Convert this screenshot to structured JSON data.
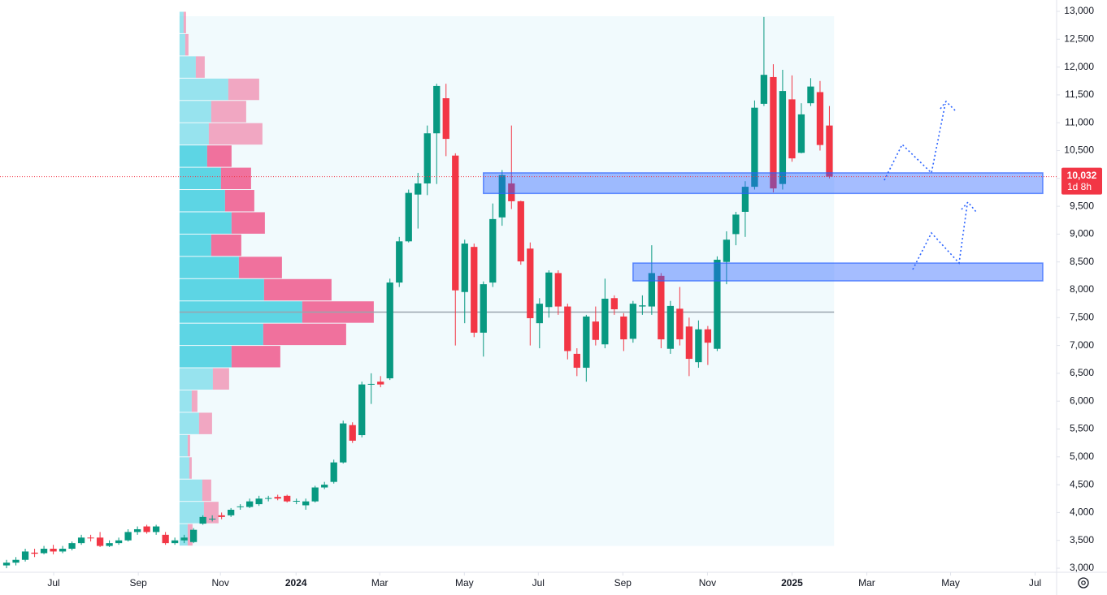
{
  "chart_data": {
    "type": "candlestick",
    "open": [
      3050,
      3100,
      3150,
      3280,
      3270,
      3350,
      3300,
      3350,
      3450,
      3550,
      3550,
      3400,
      3450,
      3500,
      3650,
      3750,
      3650,
      3600,
      3450,
      3500,
      3470,
      3800,
      3880,
      3950,
      3950,
      4100,
      4100,
      4150,
      4250,
      4280,
      4300,
      4200,
      4130,
      4200,
      4450,
      4550,
      4900,
      5570,
      5390,
      6300,
      6350,
      6410,
      8130,
      8870,
      9710,
      9910,
      10810,
      11440,
      10410,
      7960,
      8770,
      7230,
      8130,
      9300,
      9910,
      9590,
      8740,
      7400,
      7690,
      8300,
      7700,
      6850,
      6600,
      7430,
      7020,
      7850,
      7520,
      7120,
      7700,
      7700,
      8250,
      6940,
      7660,
      7340,
      6700,
      7290,
      6940,
      8500,
      9000,
      9400,
      9850,
      11340,
      11820,
      9900,
      11420,
      10460,
      11350,
      11550,
      10950
    ],
    "high": [
      3150,
      3200,
      3350,
      3350,
      3400,
      3420,
      3400,
      3480,
      3600,
      3600,
      3650,
      3500,
      3550,
      3700,
      3750,
      3780,
      3780,
      3650,
      3550,
      3600,
      3720,
      3950,
      3950,
      4000,
      4080,
      4150,
      4250,
      4300,
      4300,
      4320,
      4320,
      4250,
      4250,
      4480,
      4550,
      4950,
      5650,
      5620,
      6350,
      6500,
      6450,
      8200,
      8950,
      9800,
      10100,
      10950,
      11700,
      11700,
      10450,
      8900,
      8830,
      8150,
      9550,
      10150,
      10950,
      9600,
      8850,
      7850,
      8350,
      8350,
      7750,
      6950,
      7550,
      7700,
      8200,
      7900,
      7580,
      7800,
      7900,
      8800,
      8300,
      7800,
      8050,
      7500,
      7450,
      7350,
      8600,
      9050,
      9400,
      9950,
      11400,
      12900,
      12050,
      11950,
      11850,
      11350,
      11800,
      11750,
      11300
    ],
    "low": [
      3000,
      3050,
      3120,
      3200,
      3250,
      3250,
      3270,
      3320,
      3420,
      3480,
      3380,
      3380,
      3420,
      3480,
      3600,
      3620,
      3600,
      3420,
      3420,
      3450,
      3450,
      3780,
      3840,
      3880,
      3920,
      4050,
      4080,
      4120,
      4200,
      4220,
      4180,
      4150,
      4050,
      4180,
      4420,
      4520,
      4880,
      5250,
      5350,
      5950,
      6250,
      6380,
      8050,
      8850,
      9100,
      9700,
      9900,
      10400,
      7000,
      7400,
      7150,
      6800,
      8050,
      9150,
      9450,
      8450,
      7000,
      6950,
      7500,
      7550,
      6750,
      6450,
      6350,
      7000,
      6950,
      7550,
      6900,
      7050,
      7550,
      7550,
      6950,
      6850,
      7000,
      6450,
      6600,
      6650,
      6900,
      8100,
      8800,
      8950,
      9800,
      11300,
      9750,
      9800,
      10300,
      10450,
      11300,
      10500,
      10000
    ],
    "close": [
      3100,
      3150,
      3300,
      3260,
      3350,
      3300,
      3350,
      3450,
      3550,
      3540,
      3400,
      3450,
      3500,
      3650,
      3700,
      3650,
      3750,
      3450,
      3500,
      3550,
      3690,
      3920,
      3890,
      3920,
      4050,
      4110,
      4200,
      4250,
      4260,
      4250,
      4200,
      4210,
      4200,
      4450,
      4500,
      4900,
      5600,
      5290,
      6300,
      6310,
      6300,
      8130,
      8870,
      9740,
      9910,
      10810,
      11660,
      10710,
      7990,
      8830,
      7230,
      8100,
      9270,
      10060,
      9590,
      8510,
      7490,
      7750,
      8310,
      7700,
      6900,
      6600,
      7520,
      7100,
      7840,
      7650,
      7110,
      7750,
      7720,
      8300,
      7110,
      7710,
      7110,
      6760,
      7290,
      7050,
      8540,
      8900,
      9350,
      9850,
      11270,
      11860,
      9820,
      11570,
      10360,
      11150,
      11650,
      10600,
      10032
    ],
    "up_color": "#089981",
    "down_color": "#f23645",
    "ylim": [
      3000,
      13000
    ],
    "yticks": [
      {
        "value": 3000,
        "label": "3,000"
      },
      {
        "value": 3500,
        "label": "3,500"
      },
      {
        "value": 4000,
        "label": "4,000"
      },
      {
        "value": 4500,
        "label": "4,500"
      },
      {
        "value": 5000,
        "label": "5,000"
      },
      {
        "value": 5500,
        "label": "5,500"
      },
      {
        "value": 6000,
        "label": "6,000"
      },
      {
        "value": 6500,
        "label": "6,500"
      },
      {
        "value": 7000,
        "label": "7,000"
      },
      {
        "value": 7500,
        "label": "7,500"
      },
      {
        "value": 8000,
        "label": "8,000"
      },
      {
        "value": 8500,
        "label": "8,500"
      },
      {
        "value": 9000,
        "label": "9,000"
      },
      {
        "value": 9500,
        "label": "9,500"
      },
      {
        "value": 10000,
        "label": "10,000"
      },
      {
        "value": 10500,
        "label": "10,500"
      },
      {
        "value": 11000,
        "label": "11,000"
      },
      {
        "value": 11500,
        "label": "11,500"
      },
      {
        "value": 12000,
        "label": "12,000"
      },
      {
        "value": 12500,
        "label": "12,500"
      },
      {
        "value": 13000,
        "label": "13,000"
      }
    ],
    "xlim": [
      -0.7,
      112.3
    ],
    "xticks": [
      {
        "value": 5.04,
        "label": "Jul"
      },
      {
        "value": 14.09,
        "label": "Sep"
      },
      {
        "value": 22.87,
        "label": "Nov"
      },
      {
        "value": 30.96,
        "label": "2024"
      },
      {
        "value": 39.91,
        "label": "Mar"
      },
      {
        "value": 48.96,
        "label": "May"
      },
      {
        "value": 56.87,
        "label": "Jul"
      },
      {
        "value": 65.91,
        "label": "Sep"
      },
      {
        "value": 74.96,
        "label": "Nov"
      },
      {
        "value": 84.0,
        "label": "2025"
      },
      {
        "value": 92.0,
        "label": "Mar"
      },
      {
        "value": 100.96,
        "label": "May"
      },
      {
        "value": 110.0,
        "label": "Jul"
      }
    ],
    "last_price": {
      "value": 10032,
      "label": "10,032"
    },
    "countdown": "1d 8h",
    "volume_profile": {
      "bins": [
        3400,
        3800,
        4200,
        4600,
        5000,
        5400,
        5800,
        6200,
        6600,
        7000,
        7400,
        7800,
        8200,
        8600,
        9000,
        9400,
        9800,
        10200,
        10600,
        11000,
        11400,
        11800,
        12200,
        12600,
        13000
      ],
      "up": [
        10,
        30,
        28,
        12,
        10,
        24,
        15,
        41,
        64,
        103,
        151,
        104,
        73,
        39,
        64,
        56,
        51,
        34,
        36,
        39,
        60,
        20,
        7,
        5
      ],
      "down": [
        6,
        18,
        11,
        3,
        3,
        16,
        7,
        20,
        60,
        102,
        88,
        83,
        53,
        37,
        41,
        36,
        37,
        30,
        66,
        43,
        38,
        11,
        4,
        3
      ],
      "value_area": [
        6600,
        10600
      ],
      "poc": 7600,
      "up_color": "#4dd0e1",
      "down_color": "#f06292"
    },
    "zones": [
      {
        "top": 10100,
        "bottom": 9730
      },
      {
        "top": 8480,
        "bottom": 8160
      }
    ]
  }
}
